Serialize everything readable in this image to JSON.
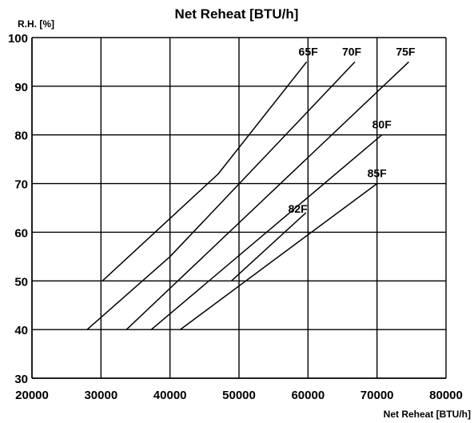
{
  "chart_data": {
    "type": "line",
    "title": "Net Reheat [BTU/h]",
    "xlabel": "Net Reheat [BTU/h]",
    "ylabel": "R.H. [%]",
    "xlim": [
      20000,
      80000
    ],
    "ylim": [
      30,
      100
    ],
    "x_ticks": [
      "20000",
      "30000",
      "40000",
      "50000",
      "60000",
      "70000",
      "80000"
    ],
    "y_ticks": [
      "30",
      "40",
      "50",
      "60",
      "70",
      "80",
      "90",
      "100"
    ],
    "grid": true,
    "colors": {
      "grid": "#000000",
      "line": "#000000"
    },
    "series": [
      {
        "name": "65F",
        "points": [
          [
            30200,
            50
          ],
          [
            47000,
            72
          ],
          [
            59800,
            95
          ]
        ]
      },
      {
        "name": "70F",
        "points": [
          [
            28000,
            40
          ],
          [
            40000,
            55
          ],
          [
            66800,
            95
          ]
        ]
      },
      {
        "name": "75F",
        "points": [
          [
            33700,
            40
          ],
          [
            74600,
            95
          ]
        ]
      },
      {
        "name": "80F",
        "points": [
          [
            37300,
            40
          ],
          [
            70700,
            80
          ]
        ]
      },
      {
        "name": "82F",
        "points": [
          [
            48900,
            50
          ],
          [
            59700,
            64
          ]
        ]
      },
      {
        "name": "85F",
        "points": [
          [
            41500,
            40
          ],
          [
            70000,
            70
          ]
        ]
      }
    ]
  }
}
